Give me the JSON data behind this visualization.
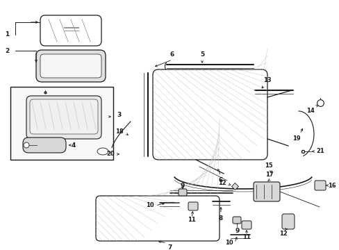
{
  "bg_color": "#ffffff",
  "line_color": "#1a1a1a",
  "fig_width": 4.89,
  "fig_height": 3.6,
  "dpi": 100,
  "label_fontsize": 6.5,
  "label_fontsize_small": 6.0
}
